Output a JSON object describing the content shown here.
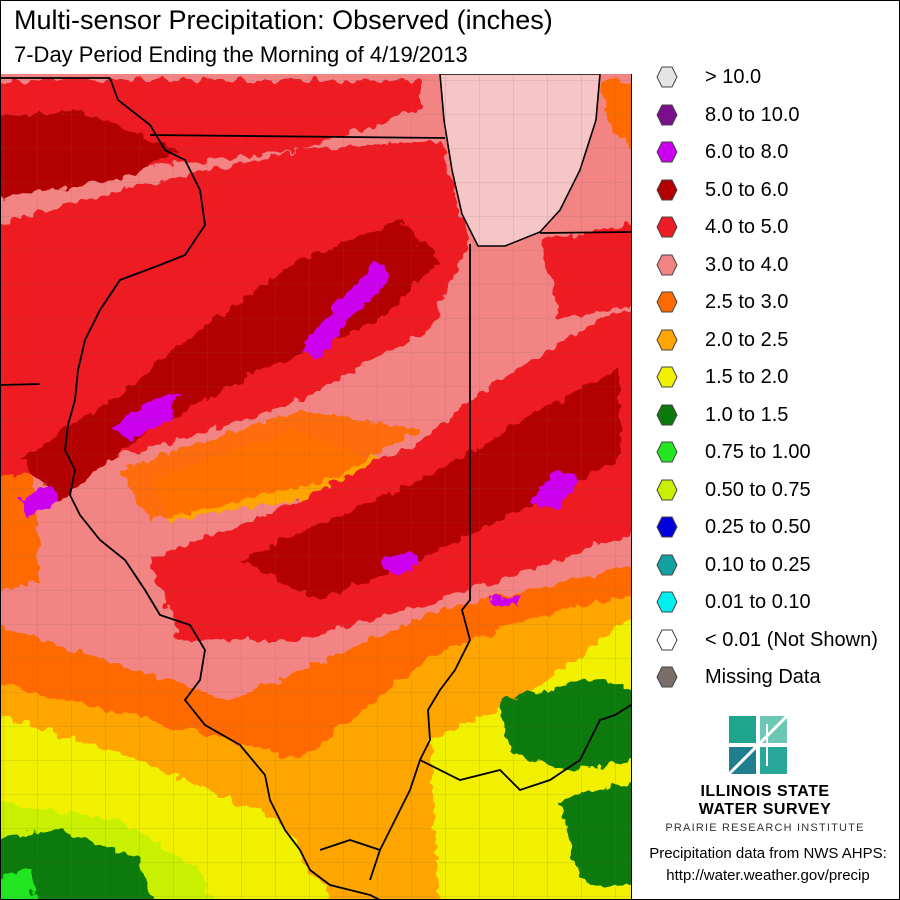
{
  "header": {
    "title": "Multi-sensor Precipitation:  Observed (inches)",
    "subtitle": "7-Day Period Ending the Morning of 4/19/2013"
  },
  "legend": {
    "items": [
      {
        "label": "> 10.0",
        "color": "#e4e4e4"
      },
      {
        "label": "8.0 to 10.0",
        "color": "#7a0f8c"
      },
      {
        "label": "6.0 to 8.0",
        "color": "#cc00ee"
      },
      {
        "label": "5.0 to 6.0",
        "color": "#b30000"
      },
      {
        "label": "4.0 to 5.0",
        "color": "#ee1c24"
      },
      {
        "label": "3.0 to 4.0",
        "color": "#f28484"
      },
      {
        "label": "2.5 to 3.0",
        "color": "#ff6a00"
      },
      {
        "label": "2.0 to 2.5",
        "color": "#ffa500"
      },
      {
        "label": "1.5 to 2.0",
        "color": "#f0f000"
      },
      {
        "label": "1.0 to 1.5",
        "color": "#0a7a0a"
      },
      {
        "label": "0.75 to 1.00",
        "color": "#22e622"
      },
      {
        "label": "0.50 to 0.75",
        "color": "#c8f000"
      },
      {
        "label": "0.25 to 0.50",
        "color": "#0000dd"
      },
      {
        "label": "0.10 to 0.25",
        "color": "#13a0a0"
      },
      {
        "label": "0.01 to 0.10",
        "color": "#00f0f0"
      },
      {
        "label": "< 0.01 (Not Shown)",
        "color": "#ffffff"
      },
      {
        "label": "Missing Data",
        "color": "#7a6e68"
      }
    ]
  },
  "branding": {
    "name_line1": "ILLINOIS STATE",
    "name_line2": "WATER SURVEY",
    "institute": "PRAIRIE RESEARCH INSTITUTE"
  },
  "credit": {
    "line1": "Precipitation data from NWS AHPS:",
    "line2": "http://water.weather.gov/precip"
  }
}
